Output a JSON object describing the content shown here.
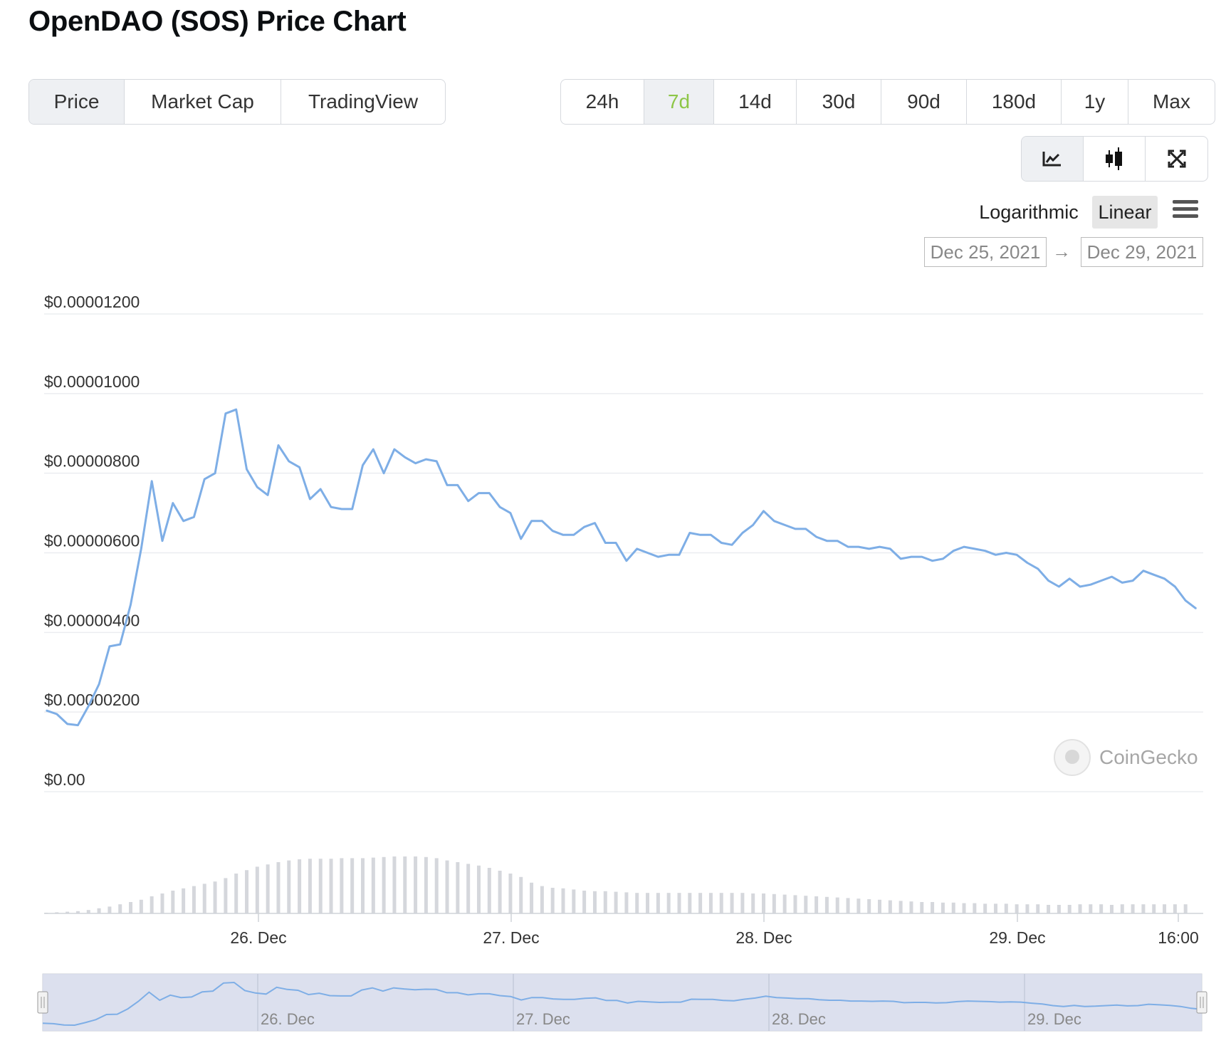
{
  "title": "OpenDAO (SOS) Price Chart",
  "tabs": [
    "Price",
    "Market Cap",
    "TradingView"
  ],
  "active_tab": "Price",
  "ranges": [
    "24h",
    "7d",
    "14d",
    "30d",
    "90d",
    "180d",
    "1y",
    "Max"
  ],
  "active_range": "7d",
  "chart_types": [
    {
      "icon": "line-chart-icon"
    },
    {
      "icon": "candlestick-chart-icon"
    },
    {
      "icon": "fullscreen-icon"
    }
  ],
  "scale": {
    "log_label": "Logarithmic",
    "linear_label": "Linear",
    "active": "Linear"
  },
  "menu_icon": "hamburger-menu-icon",
  "date_range": {
    "from": "Dec 25, 2021",
    "arrow": "→",
    "to": "Dec 29, 2021"
  },
  "watermark": "CoinGecko",
  "colors": {
    "line": "#7eaee6",
    "volume": "#d5d7dc",
    "navigator_fill": "#d7dcec",
    "active_range": "#8dc647"
  },
  "chart_data": {
    "type": "line",
    "series": [
      {
        "values": [
          2.04e-06,
          1.95e-06,
          1.7e-06,
          1.67e-06,
          2.15e-06,
          2.7e-06,
          3.65e-06,
          3.7e-06,
          4.7e-06,
          6.1e-06,
          7.8e-06,
          6.3e-06,
          7.25e-06,
          6.8e-06,
          6.9e-06,
          7.85e-06,
          8e-06,
          9.5e-06,
          9.6e-06,
          8.1e-06,
          7.65e-06,
          7.45e-06,
          8.7e-06,
          8.3e-06,
          8.15e-06,
          7.35e-06,
          7.6e-06,
          7.15e-06,
          7.1e-06,
          7.1e-06,
          8.2e-06,
          8.6e-06,
          8e-06,
          8.6e-06,
          8.4e-06,
          8.25e-06,
          8.35e-06,
          8.3e-06,
          7.7e-06,
          7.7e-06,
          7.3e-06,
          7.5e-06,
          7.5e-06,
          7.15e-06,
          7e-06,
          6.35e-06,
          6.8e-06,
          6.8e-06,
          6.55e-06,
          6.45e-06,
          6.45e-06,
          6.65e-06,
          6.75e-06,
          6.25e-06,
          6.25e-06,
          5.8e-06,
          6.1e-06,
          6e-06,
          5.9e-06,
          5.95e-06,
          5.95e-06,
          6.5e-06,
          6.45e-06,
          6.45e-06,
          6.25e-06,
          6.2e-06,
          6.5e-06,
          6.7e-06,
          7.05e-06,
          6.8e-06,
          6.7e-06,
          6.6e-06,
          6.6e-06,
          6.4e-06,
          6.3e-06,
          6.3e-06,
          6.15e-06,
          6.15e-06,
          6.1e-06,
          6.15e-06,
          6.1e-06,
          5.85e-06,
          5.9e-06,
          5.9e-06,
          5.8e-06,
          5.85e-06,
          6.05e-06,
          6.15e-06,
          6.1e-06,
          6.05e-06,
          5.95e-06,
          6e-06,
          5.95e-06,
          5.75e-06,
          5.6e-06,
          5.3e-06,
          5.15e-06,
          5.35e-06,
          5.15e-06,
          5.2e-06,
          5.3e-06,
          5.4e-06,
          5.25e-06,
          5.3e-06,
          5.55e-06,
          5.45e-06,
          5.35e-06,
          5.15e-06,
          4.8e-06,
          4.6e-06
        ]
      }
    ],
    "volume": [
      0.01,
      0.02,
      0.03,
      0.04,
      0.06,
      0.09,
      0.12,
      0.16,
      0.2,
      0.24,
      0.3,
      0.35,
      0.4,
      0.44,
      0.48,
      0.52,
      0.56,
      0.62,
      0.7,
      0.76,
      0.82,
      0.86,
      0.9,
      0.93,
      0.95,
      0.96,
      0.96,
      0.96,
      0.97,
      0.97,
      0.97,
      0.98,
      0.99,
      1.0,
      1.0,
      1.0,
      0.99,
      0.97,
      0.93,
      0.9,
      0.87,
      0.84,
      0.8,
      0.75,
      0.7,
      0.64,
      0.54,
      0.48,
      0.45,
      0.44,
      0.42,
      0.4,
      0.39,
      0.39,
      0.38,
      0.37,
      0.36,
      0.36,
      0.36,
      0.36,
      0.36,
      0.36,
      0.36,
      0.36,
      0.36,
      0.36,
      0.36,
      0.35,
      0.35,
      0.34,
      0.33,
      0.32,
      0.31,
      0.3,
      0.29,
      0.28,
      0.27,
      0.26,
      0.25,
      0.24,
      0.23,
      0.22,
      0.21,
      0.2,
      0.2,
      0.19,
      0.19,
      0.18,
      0.18,
      0.17,
      0.17,
      0.17,
      0.16,
      0.16,
      0.16,
      0.15,
      0.15,
      0.15,
      0.16,
      0.16,
      0.16,
      0.15,
      0.16,
      0.16,
      0.16,
      0.16,
      0.16,
      0.16,
      0.16
    ],
    "y_ticks": [
      "$0.00",
      "$0.00000200",
      "$0.00000400",
      "$0.00000600",
      "$0.00000800",
      "$0.00001000",
      "$0.00001200"
    ],
    "ylim": [
      0,
      1.2e-05
    ],
    "x_ticks": [
      "26. Dec",
      "27. Dec",
      "28. Dec",
      "29. Dec",
      "16:00"
    ],
    "navigator_ticks": [
      "26. Dec",
      "27. Dec",
      "28. Dec",
      "29. Dec"
    ],
    "grid": true,
    "xlabel": "",
    "ylabel": ""
  }
}
